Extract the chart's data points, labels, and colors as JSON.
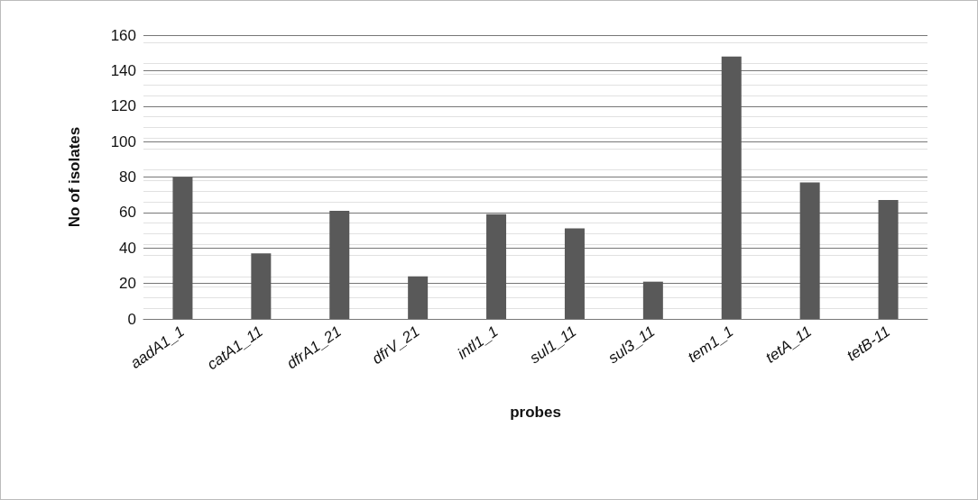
{
  "chart_data": {
    "type": "bar",
    "xlabel": "probes",
    "ylabel": "No of isolates",
    "categories": [
      "aadA1_1",
      "catA1_11",
      "dfrA1_21",
      "dfrV_21",
      "intl1_1",
      "sul1_11",
      "sul3_11",
      "tem1_1",
      "tetA_11",
      "tetB-11"
    ],
    "values": [
      80,
      37,
      61,
      24,
      59,
      51,
      21,
      148,
      77,
      67
    ],
    "color": "#595959",
    "ylim": [
      0,
      160
    ],
    "yticks": [
      0,
      20,
      40,
      60,
      80,
      100,
      120,
      140,
      160
    ],
    "grid": "y"
  }
}
